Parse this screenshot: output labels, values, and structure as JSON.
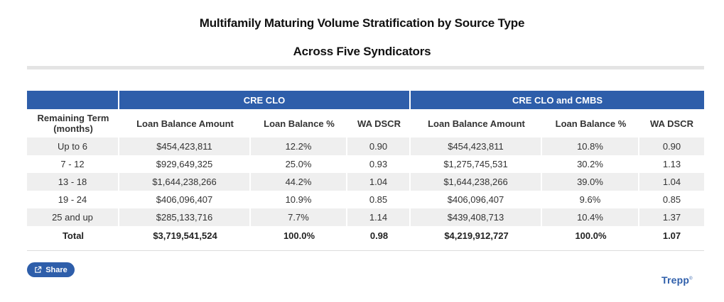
{
  "header": {
    "title": "Multifamily Maturing Volume Stratification by Source Type",
    "subtitle": "Across Five Syndicators"
  },
  "table": {
    "groups": [
      "CRE CLO",
      "CRE CLO and CMBS"
    ],
    "columns": [
      "Remaining Term (months)",
      "Loan Balance Amount",
      "Loan Balance %",
      "WA DSCR",
      "Loan Balance Amount",
      "Loan Balance %",
      "WA DSCR"
    ],
    "rows": [
      [
        "Up to 6",
        "$454,423,811",
        "12.2%",
        "0.90",
        "$454,423,811",
        "10.8%",
        "0.90"
      ],
      [
        "7 - 12",
        "$929,649,325",
        "25.0%",
        "0.93",
        "$1,275,745,531",
        "30.2%",
        "1.13"
      ],
      [
        "13 - 18",
        "$1,644,238,266",
        "44.2%",
        "1.04",
        "$1,644,238,266",
        "39.0%",
        "1.04"
      ],
      [
        "19 - 24",
        "$406,096,407",
        "10.9%",
        "0.85",
        "$406,096,407",
        "9.6%",
        "0.85"
      ],
      [
        "25 and up",
        "$285,133,716",
        "7.7%",
        "1.14",
        "$439,408,713",
        "10.4%",
        "1.37"
      ]
    ],
    "total": [
      "Total",
      "$3,719,541,524",
      "100.0%",
      "0.98",
      "$4,219,912,727",
      "100.0%",
      "1.07"
    ]
  },
  "footer": {
    "share_label": "Share",
    "share_icon": "share-icon",
    "brand": "Trepp",
    "brand_mark": "®"
  },
  "colors": {
    "accent": "#2e5eaa",
    "row_shade": "#efefef"
  }
}
